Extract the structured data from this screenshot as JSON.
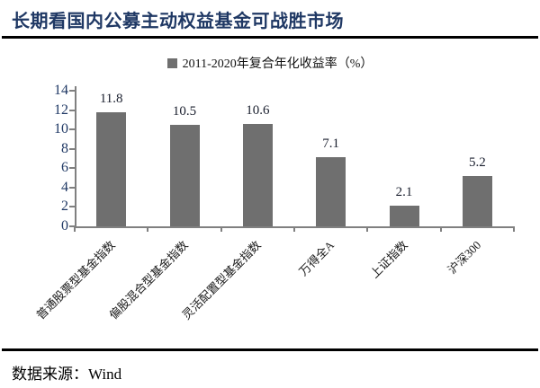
{
  "header": {
    "title": "长期看国内公募主动权益基金可战胜市场"
  },
  "legend": {
    "swatch_color": "#6F6F6F",
    "label": "2011-2020年复合年化收益率（%）"
  },
  "footer": {
    "source": "数据来源：Wind"
  },
  "colors": {
    "title_text": "#1F3864",
    "bar": "#6F6F6F",
    "axis": "#808080",
    "y_tick_label": "#1F3864",
    "value_label": "#1a1f2e",
    "rule": "#000000"
  },
  "chart_data": {
    "type": "bar",
    "title": "",
    "legend": "2011-2020年复合年化收益率（%）",
    "legend_position": "top-center",
    "categories": [
      "普通股票型基金指数",
      "偏股混合型基金指数",
      "灵活配置型基金指数",
      "万得全A",
      "上证指数",
      "沪深300"
    ],
    "values": [
      11.8,
      10.5,
      10.6,
      7.1,
      2.1,
      5.2
    ],
    "value_labels": [
      "11.8",
      "10.5",
      "10.6",
      "7.1",
      "2.1",
      "5.2"
    ],
    "xlabel": "",
    "ylabel": "",
    "ylim": [
      0,
      14
    ],
    "yticks": [
      0,
      2,
      4,
      6,
      8,
      10,
      12,
      14
    ],
    "grid": false,
    "x_label_rotation_deg": -45
  }
}
